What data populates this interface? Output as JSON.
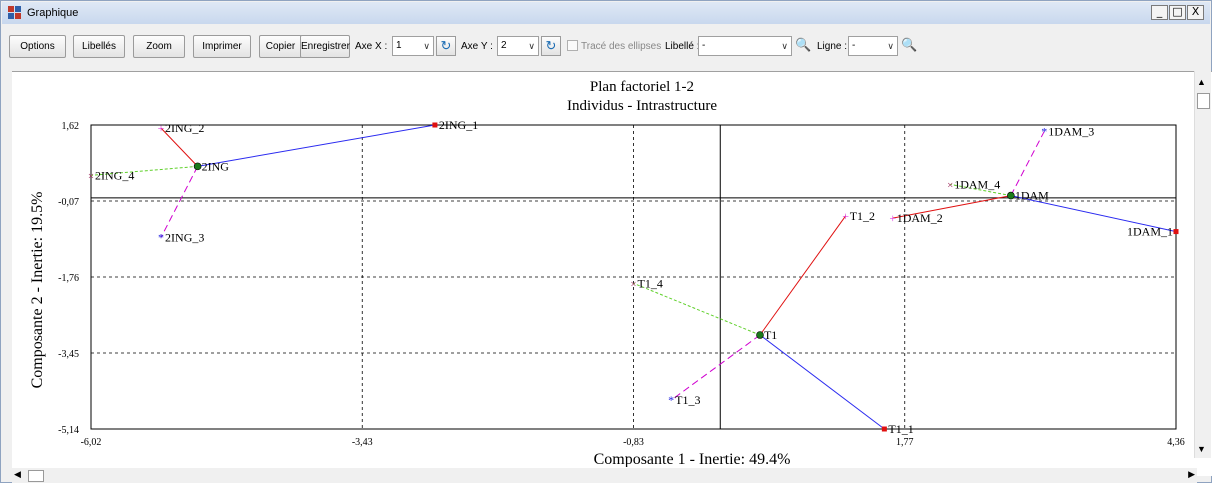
{
  "window": {
    "title": "Graphique",
    "controls": [
      "_",
      "□",
      "X"
    ]
  },
  "toolbar": {
    "options": "Options",
    "libelles": "Libellés",
    "zoom": "Zoom",
    "imprimer": "Imprimer",
    "copier": "Copier",
    "enregistrer": "Enregistrer",
    "axe_x_label": "Axe X :",
    "axe_x_value": "1",
    "axe_y_label": "Axe Y :",
    "axe_y_value": "2",
    "ellipses_label": "Tracé des ellipses",
    "libelle_label": "Libellé :",
    "libelle_value": "-",
    "ligne_label": "Ligne :",
    "ligne_value": "-"
  },
  "chart_data": {
    "type": "scatter",
    "title": "Plan factoriel 1-2",
    "subtitle": "Individus - Intrastructure",
    "xlabel": "Composante 1 - Inertie:  49.4%",
    "ylabel": "Composante 2 - Inertie:  19.5%",
    "xlim": [
      -6.02,
      4.36
    ],
    "ylim": [
      -5.14,
      1.62
    ],
    "xticks": [
      "-6,02",
      "-3,43",
      "-0,83",
      "1,77",
      "4,36"
    ],
    "yticks": [
      "1,62",
      "-0,07",
      "-1,76",
      "-3,45",
      "-5,14"
    ],
    "colors": {
      "1": "#2a2af0",
      "2": "#e01010",
      "3": "#d000d0",
      "4": "#5fd02a",
      "centroid": "#1a7a1a"
    },
    "groups": [
      {
        "name": "2ING",
        "center": [
          -5.0,
          0.7
        ],
        "points": [
          {
            "name": "2ING_1",
            "x": -2.73,
            "y": 1.62,
            "k": 1
          },
          {
            "name": "2ING_2",
            "x": -5.35,
            "y": 1.55,
            "k": 2
          },
          {
            "name": "2ING_3",
            "x": -5.35,
            "y": -0.88,
            "k": 3
          },
          {
            "name": "2ING_4",
            "x": -6.02,
            "y": 0.5,
            "k": 4
          }
        ]
      },
      {
        "name": "T1",
        "center": [
          0.38,
          -3.05
        ],
        "points": [
          {
            "name": "T1_1",
            "x": 1.57,
            "y": -5.14,
            "k": 1
          },
          {
            "name": "T1_2",
            "x": 1.2,
            "y": -0.4,
            "k": 2
          },
          {
            "name": "T1_3",
            "x": -0.47,
            "y": -4.5,
            "k": 3
          },
          {
            "name": "T1_4",
            "x": -0.83,
            "y": -1.9,
            "k": 4
          }
        ]
      },
      {
        "name": "1DAM",
        "center": [
          2.78,
          0.05
        ],
        "points": [
          {
            "name": "1DAM_1",
            "x": 4.36,
            "y": -0.75,
            "k": 1
          },
          {
            "name": "1DAM_2",
            "x": 1.65,
            "y": -0.45,
            "k": 2
          },
          {
            "name": "1DAM_3",
            "x": 3.1,
            "y": 1.48,
            "k": 3
          },
          {
            "name": "1DAM_4",
            "x": 2.2,
            "y": 0.3,
            "k": 4
          }
        ]
      }
    ]
  }
}
